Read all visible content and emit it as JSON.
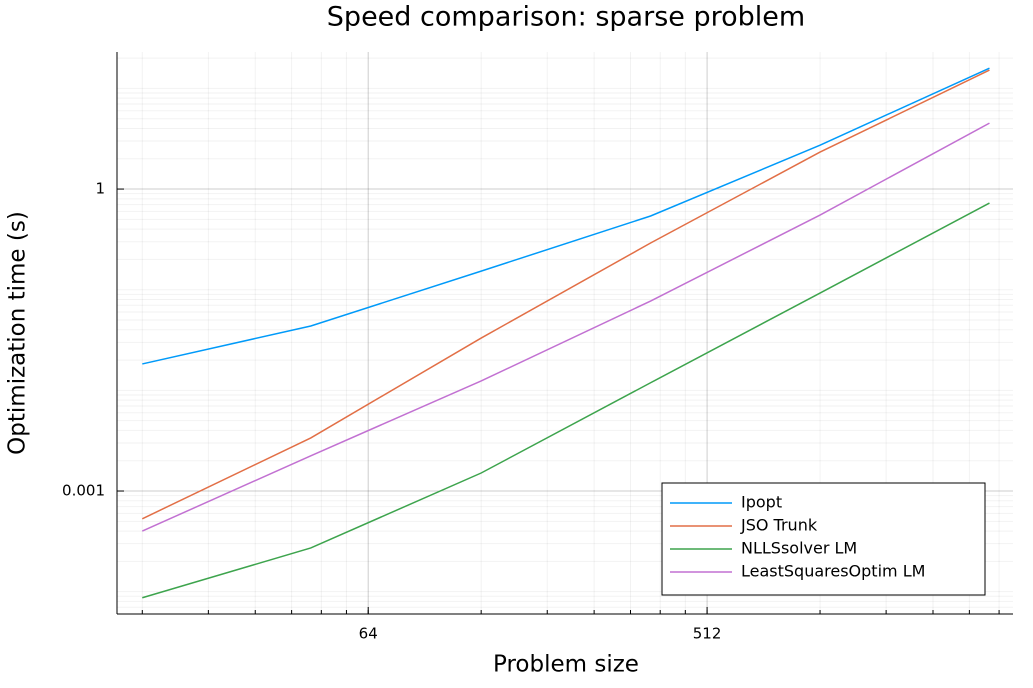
{
  "chart_data": {
    "type": "line",
    "title": "Speed comparison: sparse problem",
    "x_label": "Problem size",
    "y_label": "Optimization time (s)",
    "x": [
      16,
      45,
      128,
      362,
      1024,
      2896
    ],
    "xscale": "log2",
    "yscale": "log10",
    "xlim": [
      13.7,
      3346
    ],
    "ylim": [
      6e-05,
      23
    ],
    "xticks": [
      64,
      512
    ],
    "yticks": [
      0.001,
      1
    ],
    "grid": true,
    "minor_grid": true,
    "legend": "lower right",
    "series": [
      {
        "name": "Ipopt",
        "color": "#009af9",
        "values": [
          0.0183,
          0.0436,
          0.153,
          0.54,
          2.73,
          15.9
        ]
      },
      {
        "name": "JSO Trunk",
        "color": "#e26f46",
        "values": [
          0.00053,
          0.00337,
          0.0331,
          0.291,
          2.33,
          15.2
        ]
      },
      {
        "name": "NLLSsolver LM",
        "color": "#3da44d",
        "values": [
          8.7e-05,
          0.000272,
          0.00151,
          0.0119,
          0.0927,
          0.726
        ]
      },
      {
        "name": "LeastSquaresOptim LM",
        "color": "#c271d2",
        "values": [
          0.0004,
          0.00224,
          0.0124,
          0.0772,
          0.552,
          4.52
        ]
      }
    ]
  }
}
